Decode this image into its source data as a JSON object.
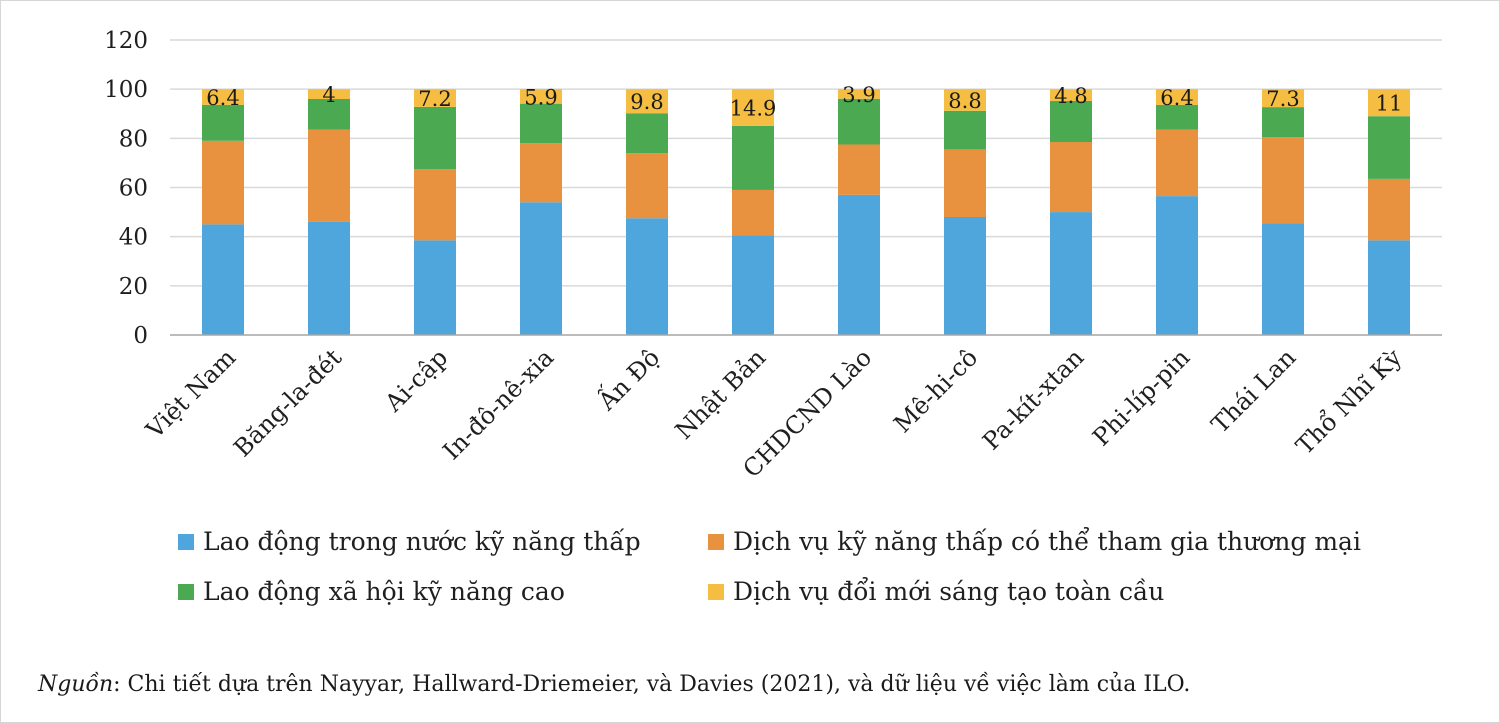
{
  "chart_data": {
    "type": "bar",
    "stacked": true,
    "title": "",
    "xlabel": "",
    "ylabel": "",
    "ylim": [
      0,
      120
    ],
    "yticks": [
      0,
      20,
      40,
      60,
      80,
      100,
      120
    ],
    "grid": true,
    "legend_position": "bottom",
    "categories": [
      "Việt Nam",
      "Băng-la-đét",
      "Ai-cập",
      "In-đô-nê-xia",
      "Ấn Độ",
      "Nhật Bản",
      "CHDCND Lào",
      "Mê-hi-cô",
      "Pa-kít-xtan",
      "Phi-líp-pin",
      "Thái Lan",
      "Thổ Nhĩ Kỳ"
    ],
    "series": [
      {
        "name": "Lao động trong nước kỹ năng thấp",
        "color": "#4EA6DC",
        "values": [
          45,
          46,
          38.5,
          54,
          47.5,
          40.5,
          57,
          48,
          50,
          56.5,
          45.5,
          38.5
        ]
      },
      {
        "name": "Dịch vụ kỹ năng thấp có thể tham gia thương mại",
        "color": "#E8913F",
        "values": [
          34,
          37.5,
          29,
          24,
          26.5,
          18.5,
          20.5,
          27.5,
          28.5,
          27,
          35,
          25
        ]
      },
      {
        "name": "Lao động xã hội kỹ năng cao",
        "color": "#4BA952",
        "values": [
          14.6,
          12.5,
          25.3,
          16.1,
          16.2,
          26.1,
          18.6,
          15.7,
          16.7,
          10.1,
          12.2,
          25.5
        ]
      },
      {
        "name": "Dịch vụ đổi mới sáng tạo toàn cầu",
        "color": "#F5BE42",
        "values": [
          6.4,
          4,
          7.2,
          5.9,
          9.8,
          14.9,
          3.9,
          8.8,
          4.8,
          6.4,
          7.3,
          11
        ],
        "labels": [
          "6.4",
          "4",
          "7.2",
          "5.9",
          "9.8",
          "14.9",
          "3.9",
          "8.8",
          "4.8",
          "6.4",
          "7.3",
          "11"
        ]
      }
    ]
  },
  "source": {
    "prefix": "Nguồn",
    "text": ": Chi tiết dựa trên Nayyar, Hallward-Driemeier, và Davies (2021), và dữ liệu về việc làm của ILO."
  }
}
